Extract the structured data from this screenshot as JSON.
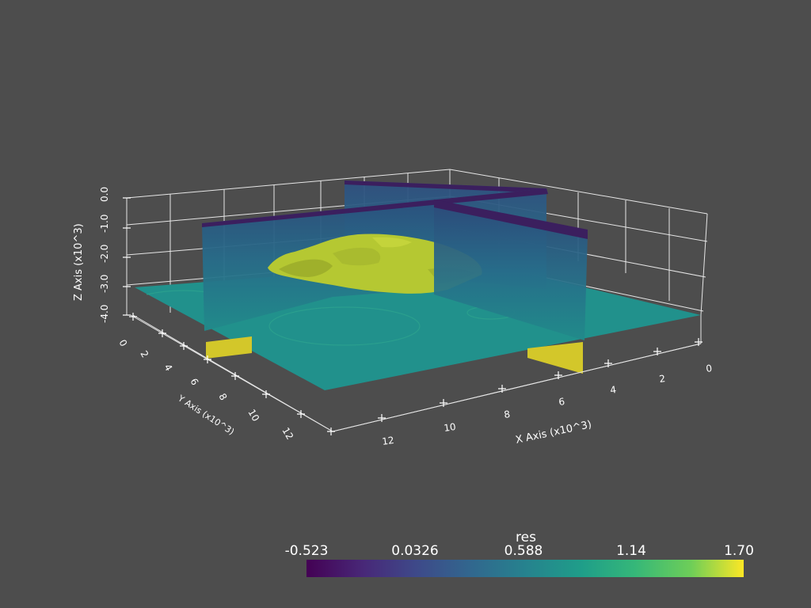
{
  "colorbar": {
    "title": "res",
    "ticks": [
      "-0.523",
      "0.0326",
      "0.588",
      "1.14",
      "1.70"
    ]
  },
  "axes": {
    "x_title": "X Axis (x10^3)",
    "y_title": "Y Axis (x10^3)",
    "z_title": "Z Axis (x10^3)",
    "x_ticks": [
      "0",
      "2",
      "4",
      "6",
      "8",
      "10",
      "12"
    ],
    "y_ticks": [
      "0",
      "2",
      "4",
      "6",
      "8",
      "10",
      "12"
    ],
    "z_ticks": [
      "0.0",
      "-1.0",
      "-2.0",
      "-3.0",
      "-4.0"
    ]
  },
  "colors": {
    "background": "#4d4d4d",
    "grid": "#e6e6e6",
    "slice_horizontal": "#21918c",
    "slice_vertical": "#2a6f8a",
    "slice_top_edge": "#3b1f5e",
    "isosurface": "#b5c832",
    "bottom_strip": "#d3c72a"
  }
}
